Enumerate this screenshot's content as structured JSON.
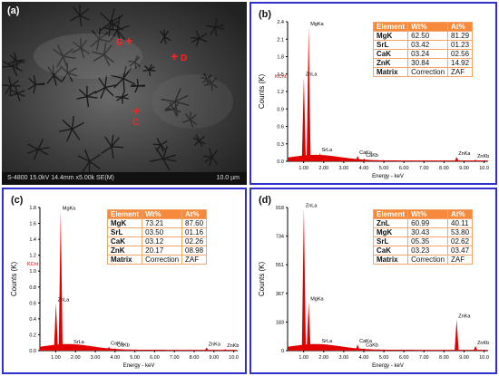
{
  "panel_a": {
    "letter": "(a)",
    "markers": [
      "B",
      "D",
      "C"
    ],
    "footer_left": "S-4800 15.0kV 14.4mm x5.00k SE(M)",
    "footer_right": "10.0 µm"
  },
  "table_header": [
    "Element",
    "Wt%",
    "At%"
  ],
  "chart_data": [
    {
      "panel": "(b)",
      "type": "bar",
      "xlabel": "Energy - keV",
      "ylabel": "Counts (K)",
      "ymax_label": "KCnt",
      "xticks": [
        "1.00",
        "2.00",
        "3.00",
        "4.00",
        "5.00",
        "6.00",
        "7.00",
        "8.00",
        "9.00",
        "10.0"
      ],
      "yticks": [
        "0.0",
        "0.3",
        "0.6",
        "0.9",
        "1.2",
        "1.5",
        "1.8",
        "2.1",
        "2.4"
      ],
      "ylim": [
        0,
        2.5
      ],
      "peaks": [
        {
          "label": "MgKa",
          "x": 1.25,
          "y": 2.4
        },
        {
          "label": "ZnLa",
          "x": 1.01,
          "y": 1.5
        },
        {
          "label": "SrLa",
          "x": 1.81,
          "y": 0.15
        },
        {
          "label": "CaKa",
          "x": 3.69,
          "y": 0.1
        },
        {
          "label": "CaKb",
          "x": 4.01,
          "y": 0.05
        },
        {
          "label": "ZnKa",
          "x": 8.63,
          "y": 0.08
        },
        {
          "label": "ZnKb",
          "x": 9.57,
          "y": 0.03
        }
      ],
      "table": [
        [
          "MgK",
          "62.50",
          "81.29"
        ],
        [
          "SrL",
          "03.42",
          "01.23"
        ],
        [
          "CaK",
          "03.24",
          "02.56"
        ],
        [
          "ZnK",
          "30.84",
          "14.92"
        ],
        [
          "Matrix",
          "Correction",
          "ZAF"
        ]
      ]
    },
    {
      "panel": "(c)",
      "type": "bar",
      "xlabel": "Energy - keV",
      "ylabel": "Counts (K)",
      "ymax_label": "KCnt",
      "xticks": [
        "1.00",
        "2.00",
        "3.00",
        "4.00",
        "5.00",
        "6.00",
        "7.00",
        "8.00",
        "9.00",
        "10.0"
      ],
      "yticks": [
        "0.0",
        "0.2",
        "0.4",
        "0.6",
        "0.8",
        "1.0",
        "1.2",
        "1.4",
        "1.6",
        "1.8"
      ],
      "ylim": [
        0,
        1.8
      ],
      "peaks": [
        {
          "label": "MgKa",
          "x": 1.25,
          "y": 1.75
        },
        {
          "label": "ZnLa",
          "x": 1.01,
          "y": 0.6
        },
        {
          "label": "SrLa",
          "x": 1.81,
          "y": 0.07
        },
        {
          "label": "CaKa",
          "x": 3.69,
          "y": 0.05
        },
        {
          "label": "CaKb",
          "x": 4.01,
          "y": 0.03
        },
        {
          "label": "ZnKa",
          "x": 8.63,
          "y": 0.04
        },
        {
          "label": "ZnKb",
          "x": 9.57,
          "y": 0.02
        }
      ],
      "table": [
        [
          "MgK",
          "73.21",
          "87.60"
        ],
        [
          "SrL",
          "03.50",
          "01.16"
        ],
        [
          "CaK",
          "03.12",
          "02.26"
        ],
        [
          "ZnK",
          "20.17",
          "08.98"
        ],
        [
          "Matrix",
          "Correction",
          "ZAF"
        ]
      ]
    },
    {
      "panel": "(d)",
      "type": "bar",
      "xlabel": "Energy - keV",
      "ylabel": "Counts (K)",
      "ymax_label": "",
      "xticks": [
        "1.00",
        "2.00",
        "3.00",
        "4.00",
        "5.00",
        "6.00",
        "7.00",
        "8.00",
        "9.00",
        "10.0"
      ],
      "yticks": [
        "0",
        "183",
        "367",
        "551",
        "734",
        "918"
      ],
      "ylim": [
        0,
        918
      ],
      "peaks": [
        {
          "label": "MgKa",
          "x": 1.25,
          "y": 310
        },
        {
          "label": "ZnLa",
          "x": 1.01,
          "y": 910
        },
        {
          "label": "SrLa",
          "x": 1.81,
          "y": 40
        },
        {
          "label": "CaKa",
          "x": 3.69,
          "y": 40
        },
        {
          "label": "CaKb",
          "x": 4.01,
          "y": 15
        },
        {
          "label": "ZnKa",
          "x": 8.63,
          "y": 200
        },
        {
          "label": "ZnKb",
          "x": 9.57,
          "y": 30
        }
      ],
      "table": [
        [
          "ZnL",
          "60.99",
          "40.11"
        ],
        [
          "MgK",
          "30.43",
          "53.80"
        ],
        [
          "SrL",
          "05.35",
          "02.62"
        ],
        [
          "CaK",
          "03.23",
          "03.47"
        ],
        [
          "Matrix",
          "Correction",
          "ZAF"
        ]
      ]
    }
  ]
}
